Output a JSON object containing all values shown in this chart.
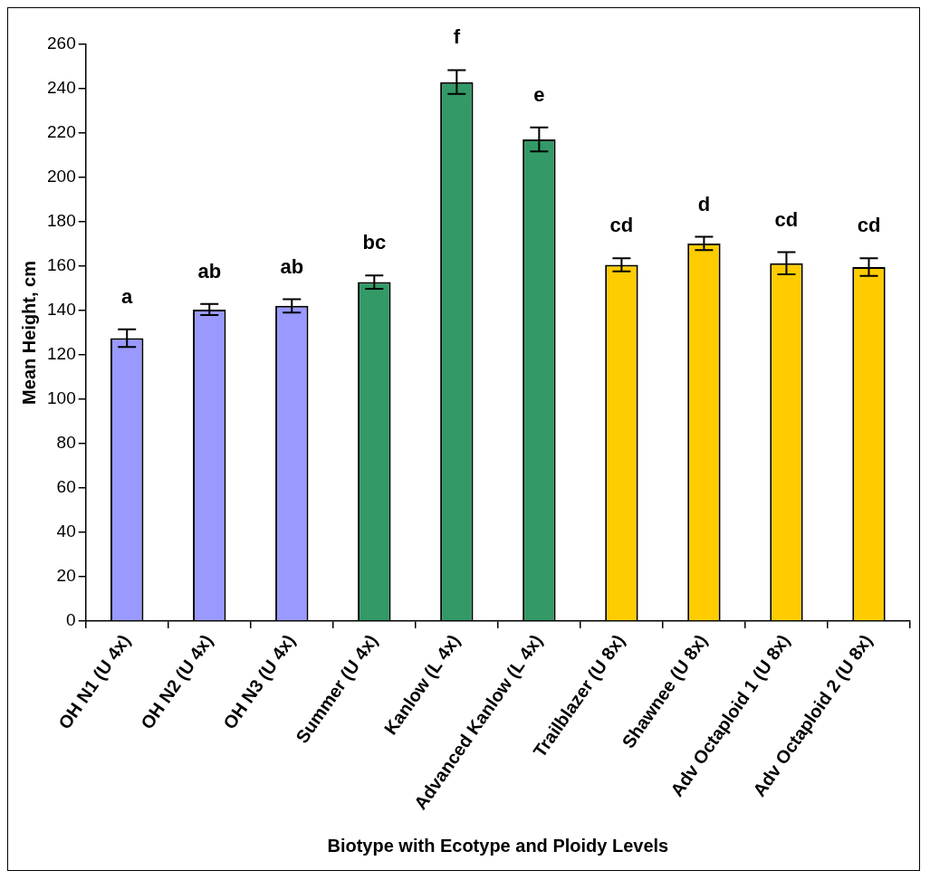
{
  "chart_data": {
    "type": "bar",
    "xlabel": "Biotype with Ecotype and Ploidy Levels",
    "ylabel": "Mean Height, cm",
    "categories": [
      "OH N1 (U 4x)",
      "OH N2 (U 4x)",
      "OH N3 (U 4x)",
      "Summer (U 4x)",
      "Kanlow (L 4x)",
      "Advanced Kanlow (L 4x)",
      "Trailblazer (U 8x)",
      "Shawnee (U 8x)",
      "Adv Octaploid 1 (U 8x)",
      "Adv Octaploid 2 (U 8x)"
    ],
    "values": [
      127.5,
      140.4,
      142.1,
      152.8,
      243.0,
      217.1,
      160.6,
      170.2,
      161.3,
      159.6
    ],
    "errors": [
      4,
      2.5,
      3,
      3,
      5.4,
      5.4,
      3,
      3,
      5,
      4
    ],
    "colors": [
      "#9999ff",
      "#9999ff",
      "#9999ff",
      "#339966",
      "#339966",
      "#339966",
      "#ffcc00",
      "#ffcc00",
      "#ffcc00",
      "#ffcc00"
    ],
    "ylim": [
      0,
      260
    ],
    "yticks": [
      0,
      20,
      40,
      60,
      80,
      100,
      120,
      140,
      160,
      180,
      200,
      220,
      240,
      260
    ],
    "grid": false,
    "legend": false,
    "annotations": [
      "a",
      "ab",
      "ab",
      "bc",
      "f",
      "e",
      "cd",
      "d",
      "cd",
      "cd"
    ]
  }
}
